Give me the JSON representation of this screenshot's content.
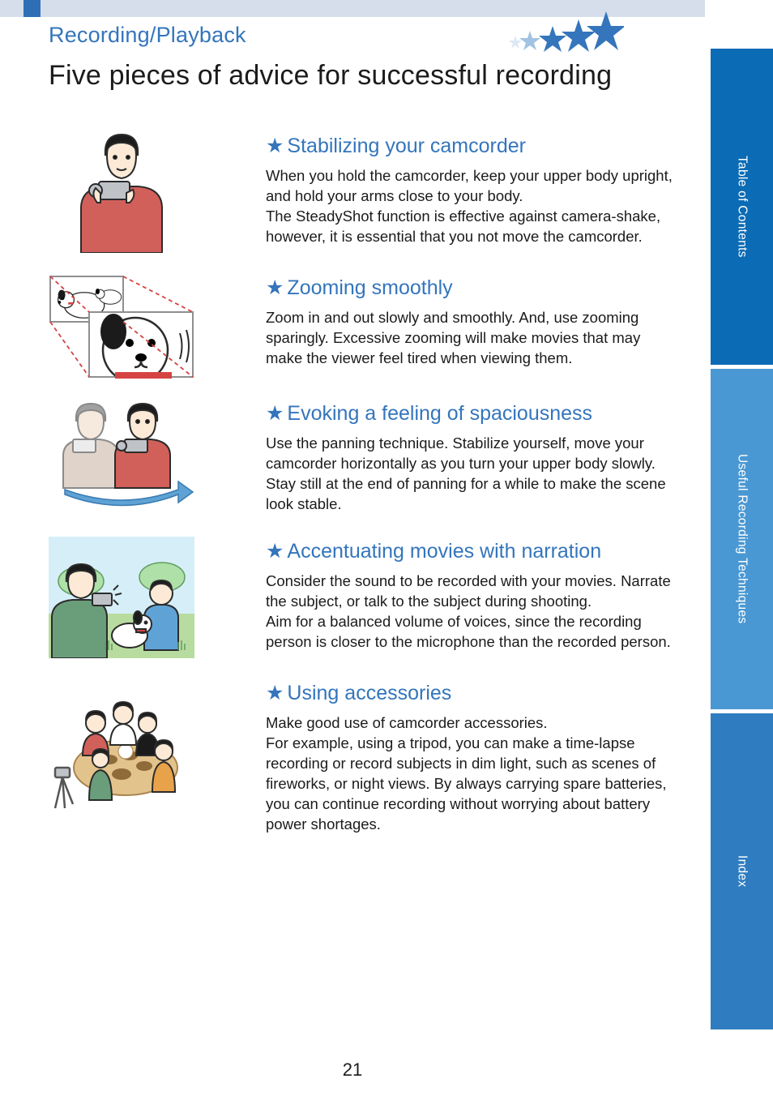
{
  "header": {
    "section_label": "Recording/Playback",
    "page_title": "Five pieces of advice for successful recording",
    "top_bar_color": "#d5deea",
    "top_tab_color": "#2e6fb8",
    "section_label_color": "#3475bc",
    "section_label_fontsize": 27,
    "page_title_color": "#1b1b1b",
    "page_title_fontsize": 34,
    "decor_star_colors": [
      "#3475bc",
      "#3475bc",
      "#3475bc",
      "#8bb3db",
      "#c5d8ed"
    ]
  },
  "tips": [
    {
      "title": "Stabilizing your camcorder",
      "body": "When you hold the camcorder, keep your upper body upright, and hold your arms close to your body.\nThe SteadyShot function is effective against camera-shake, however, it is essential that you not move the camcorder."
    },
    {
      "title": "Zooming smoothly",
      "body": "Zoom in and out slowly and smoothly. And, use zooming sparingly. Excessive zooming will make movies that may make the viewer feel tired when viewing them."
    },
    {
      "title": "Evoking a feeling of spaciousness",
      "body": "Use the panning technique. Stabilize yourself, move your camcorder horizontally as you turn your upper body slowly. Stay still at the end of panning for a while to make the scene look stable."
    },
    {
      "title": "Accentuating movies with narration",
      "body": "Consider the sound to be recorded with your movies. Narrate the subject, or talk to the subject during shooting.\nAim for a balanced volume of voices, since the recording person is closer to the microphone than the recorded person."
    },
    {
      "title": "Using accessories",
      "body": "Make good use of camcorder accessories.\nFor example, using a tripod, you can make a time-lapse recording or record subjects in dim light, such as scenes of fireworks, or night views. By always carrying spare batteries, you can continue recording without worrying about battery power shortages."
    }
  ],
  "tip_style": {
    "heading_color": "#3475bc",
    "heading_fontsize": 25,
    "body_color": "#1b1b1b",
    "body_fontsize": 18.5,
    "star_glyph": "★",
    "star_color": "#3475bc"
  },
  "illustrations": {
    "palette": {
      "skin": "#fcead7",
      "hair_dark": "#1b1b1b",
      "shirt_red": "#d2605a",
      "shirt_green": "#6a9d7a",
      "shirt_blue": "#5fa3d6",
      "shirt_orange": "#e8a24a",
      "dog_white": "#ffffff",
      "dog_ear": "#1b1b1b",
      "collar_red": "#d64343",
      "camcorder": "#bfc3c7",
      "outline": "#2b2b2b",
      "grass": "#b8dca0",
      "sky": "#d6eef8",
      "table": "#e3c38c",
      "arrow_blue": "#5fa3d6",
      "frame_gray": "#8f8f8f",
      "zoom_dashed": "#d64343"
    }
  },
  "side_tabs": [
    {
      "label": "Table of Contents",
      "bg": "#0b6bb5"
    },
    {
      "label": "Useful Recording Techniques",
      "bg": "#4a98d3"
    },
    {
      "label": "Index",
      "bg": "#2f7dc0"
    }
  ],
  "page_number": "21",
  "page_number_fontsize": 22
}
